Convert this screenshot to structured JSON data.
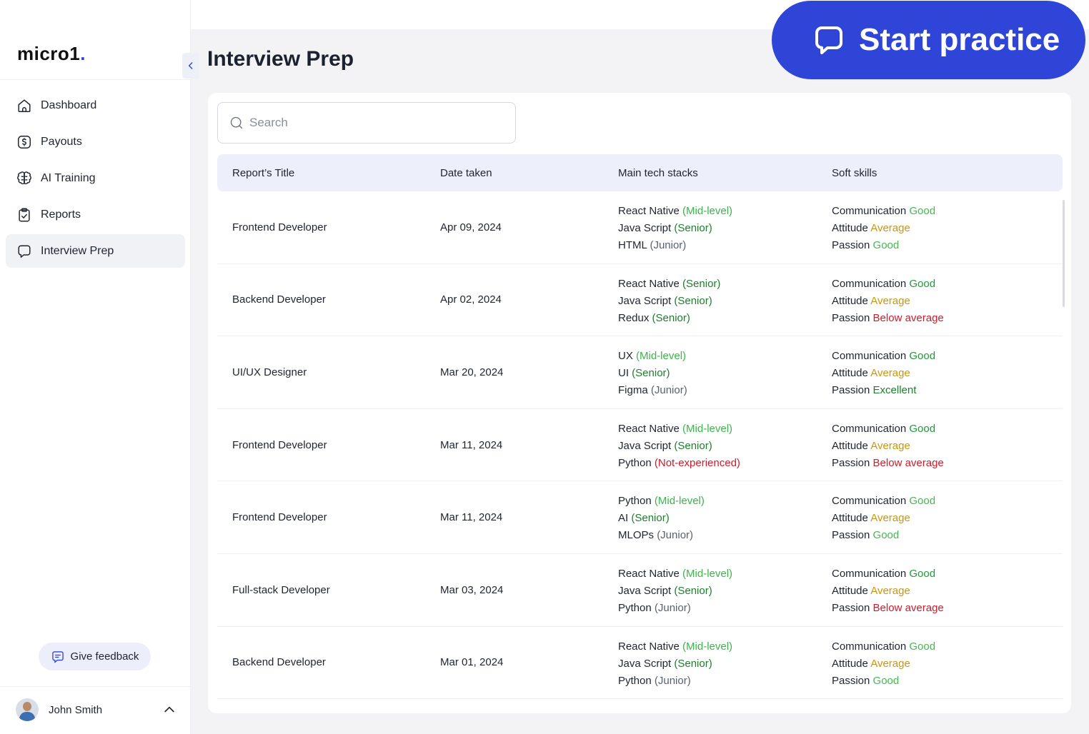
{
  "brand": {
    "name": "micro1",
    "dot": "."
  },
  "sidebar": {
    "items": [
      {
        "label": "Dashboard",
        "icon": "home-icon"
      },
      {
        "label": "Payouts",
        "icon": "dollar-icon"
      },
      {
        "label": "AI Training",
        "icon": "brain-icon"
      },
      {
        "label": "Reports",
        "icon": "clipboard-check-icon"
      },
      {
        "label": "Interview Prep",
        "icon": "chat-bubble-icon",
        "active": true
      }
    ],
    "feedback_label": "Give feedback",
    "user_name": "John Smith"
  },
  "header": {
    "title": "Interview Prep",
    "start_button": "Start practice"
  },
  "search": {
    "placeholder": "Search"
  },
  "table": {
    "columns": [
      "Report’s Title",
      "Date taken",
      "Main tech stacks",
      "Soft skills"
    ],
    "rows": [
      {
        "title": "Frontend Developer",
        "date": "Apr 09, 2024",
        "stacks": [
          {
            "name": "React Native",
            "level": "(Mid-level)",
            "cls": "lvl-mid"
          },
          {
            "name": "Java Script",
            "level": "(Senior)",
            "cls": "lvl-senior"
          },
          {
            "name": "HTML",
            "level": "(Junior)",
            "cls": "lvl-junior"
          }
        ],
        "skills": [
          {
            "name": "Communication",
            "rating": "Good",
            "cls": "sk-good-light"
          },
          {
            "name": "Attitude",
            "rating": "Average",
            "cls": "sk-avg"
          },
          {
            "name": "Passion",
            "rating": "Good",
            "cls": "sk-good-light"
          }
        ]
      },
      {
        "title": "Backend Developer",
        "date": "Apr 02, 2024",
        "stacks": [
          {
            "name": "React Native",
            "level": "(Senior)",
            "cls": "lvl-senior"
          },
          {
            "name": "Java Script",
            "level": "(Senior)",
            "cls": "lvl-senior"
          },
          {
            "name": "Redux",
            "level": "(Senior)",
            "cls": "lvl-senior"
          }
        ],
        "skills": [
          {
            "name": "Communication",
            "rating": "Good",
            "cls": "sk-good"
          },
          {
            "name": "Attitude",
            "rating": "Average",
            "cls": "sk-avg"
          },
          {
            "name": "Passion",
            "rating": "Below average",
            "cls": "sk-below"
          }
        ]
      },
      {
        "title": "UI/UX Designer",
        "date": "Mar 20, 2024",
        "stacks": [
          {
            "name": "UX",
            "level": "(Mid-level)",
            "cls": "lvl-mid"
          },
          {
            "name": "UI",
            "level": "(Senior)",
            "cls": "lvl-senior"
          },
          {
            "name": "Figma",
            "level": "(Junior)",
            "cls": "lvl-junior"
          }
        ],
        "skills": [
          {
            "name": "Communication",
            "rating": "Good",
            "cls": "sk-good"
          },
          {
            "name": "Attitude",
            "rating": "Average",
            "cls": "sk-avg"
          },
          {
            "name": "Passion",
            "rating": "Excellent",
            "cls": "sk-excellent"
          }
        ]
      },
      {
        "title": "Frontend Developer",
        "date": "Mar 11, 2024",
        "stacks": [
          {
            "name": "React Native",
            "level": "(Mid-level)",
            "cls": "lvl-mid"
          },
          {
            "name": "Java Script",
            "level": "(Senior)",
            "cls": "lvl-senior"
          },
          {
            "name": "Python",
            "level": "(Not-experienced)",
            "cls": "lvl-none"
          }
        ],
        "skills": [
          {
            "name": "Communication",
            "rating": "Good",
            "cls": "sk-good"
          },
          {
            "name": "Attitude",
            "rating": "Average",
            "cls": "sk-avg"
          },
          {
            "name": "Passion",
            "rating": "Below average",
            "cls": "sk-below"
          }
        ]
      },
      {
        "title": "Frontend Developer",
        "date": "Mar 11, 2024",
        "stacks": [
          {
            "name": "Python",
            "level": "(Mid-level)",
            "cls": "lvl-mid"
          },
          {
            "name": "AI",
            "level": "(Senior)",
            "cls": "lvl-senior"
          },
          {
            "name": "MLOPs",
            "level": "(Junior)",
            "cls": "lvl-junior"
          }
        ],
        "skills": [
          {
            "name": "Communication",
            "rating": "Good",
            "cls": "sk-good-light"
          },
          {
            "name": "Attitude",
            "rating": "Average",
            "cls": "sk-avg"
          },
          {
            "name": "Passion",
            "rating": "Good",
            "cls": "sk-good-light"
          }
        ]
      },
      {
        "title": "Full-stack Developer",
        "date": "Mar 03, 2024",
        "stacks": [
          {
            "name": "React Native",
            "level": "(Mid-level)",
            "cls": "lvl-mid"
          },
          {
            "name": "Java Script",
            "level": "(Senior)",
            "cls": "lvl-senior"
          },
          {
            "name": "Python",
            "level": "(Junior)",
            "cls": "lvl-junior"
          }
        ],
        "skills": [
          {
            "name": "Communication",
            "rating": "Good",
            "cls": "sk-good"
          },
          {
            "name": "Attitude",
            "rating": "Average",
            "cls": "sk-avg"
          },
          {
            "name": "Passion",
            "rating": "Below average",
            "cls": "sk-below"
          }
        ]
      },
      {
        "title": "Backend Developer",
        "date": "Mar 01, 2024",
        "stacks": [
          {
            "name": "React Native",
            "level": "(Mid-level)",
            "cls": "lvl-mid"
          },
          {
            "name": "Java Script",
            "level": "(Senior)",
            "cls": "lvl-senior"
          },
          {
            "name": "Python",
            "level": "(Junior)",
            "cls": "lvl-junior"
          }
        ],
        "skills": [
          {
            "name": "Communication",
            "rating": "Good",
            "cls": "sk-good-light"
          },
          {
            "name": "Attitude",
            "rating": "Average",
            "cls": "sk-avg"
          },
          {
            "name": "Passion",
            "rating": "Good",
            "cls": "sk-good-light"
          }
        ]
      }
    ]
  },
  "colors": {
    "accent": "#2f45d8",
    "table_header_bg": "#edf0fb",
    "level_mid": "#3bb54a",
    "level_senior": "#1e7d2d",
    "level_not_experienced": "#d11a2a",
    "rating_average": "#c9960f",
    "rating_below_average": "#d11a2a"
  }
}
